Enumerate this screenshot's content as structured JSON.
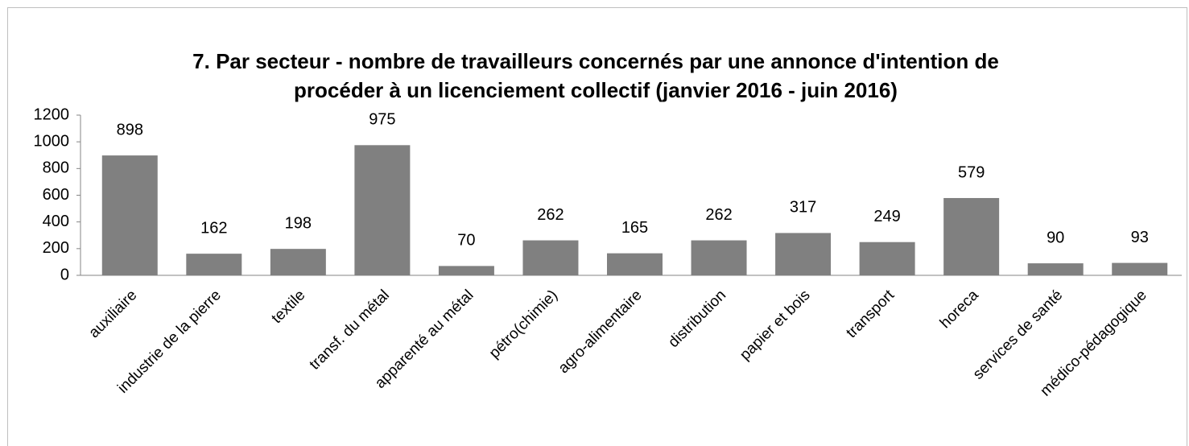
{
  "chart_data": {
    "type": "bar",
    "title": "7. Par secteur - nombre de travailleurs concernés par une annonce d'intention de procéder à un licenciement collectif (janvier 2016 - juin 2016)",
    "categories": [
      "auxiliaire",
      "industrie de la pierre",
      "textile",
      "transf. du métal",
      "apparenté au métal",
      "pétro(chimie)",
      "agro-alimentaire",
      "distribution",
      "papier et bois",
      "transport",
      "horeca",
      "services de santé",
      "médico-pédagogique"
    ],
    "values": [
      898,
      162,
      198,
      975,
      70,
      262,
      165,
      262,
      317,
      249,
      579,
      90,
      93
    ],
    "color": "#808080",
    "ylim": [
      0,
      1200
    ],
    "yticks": [
      0,
      200,
      400,
      600,
      800,
      1000,
      1200
    ],
    "grid": false
  }
}
